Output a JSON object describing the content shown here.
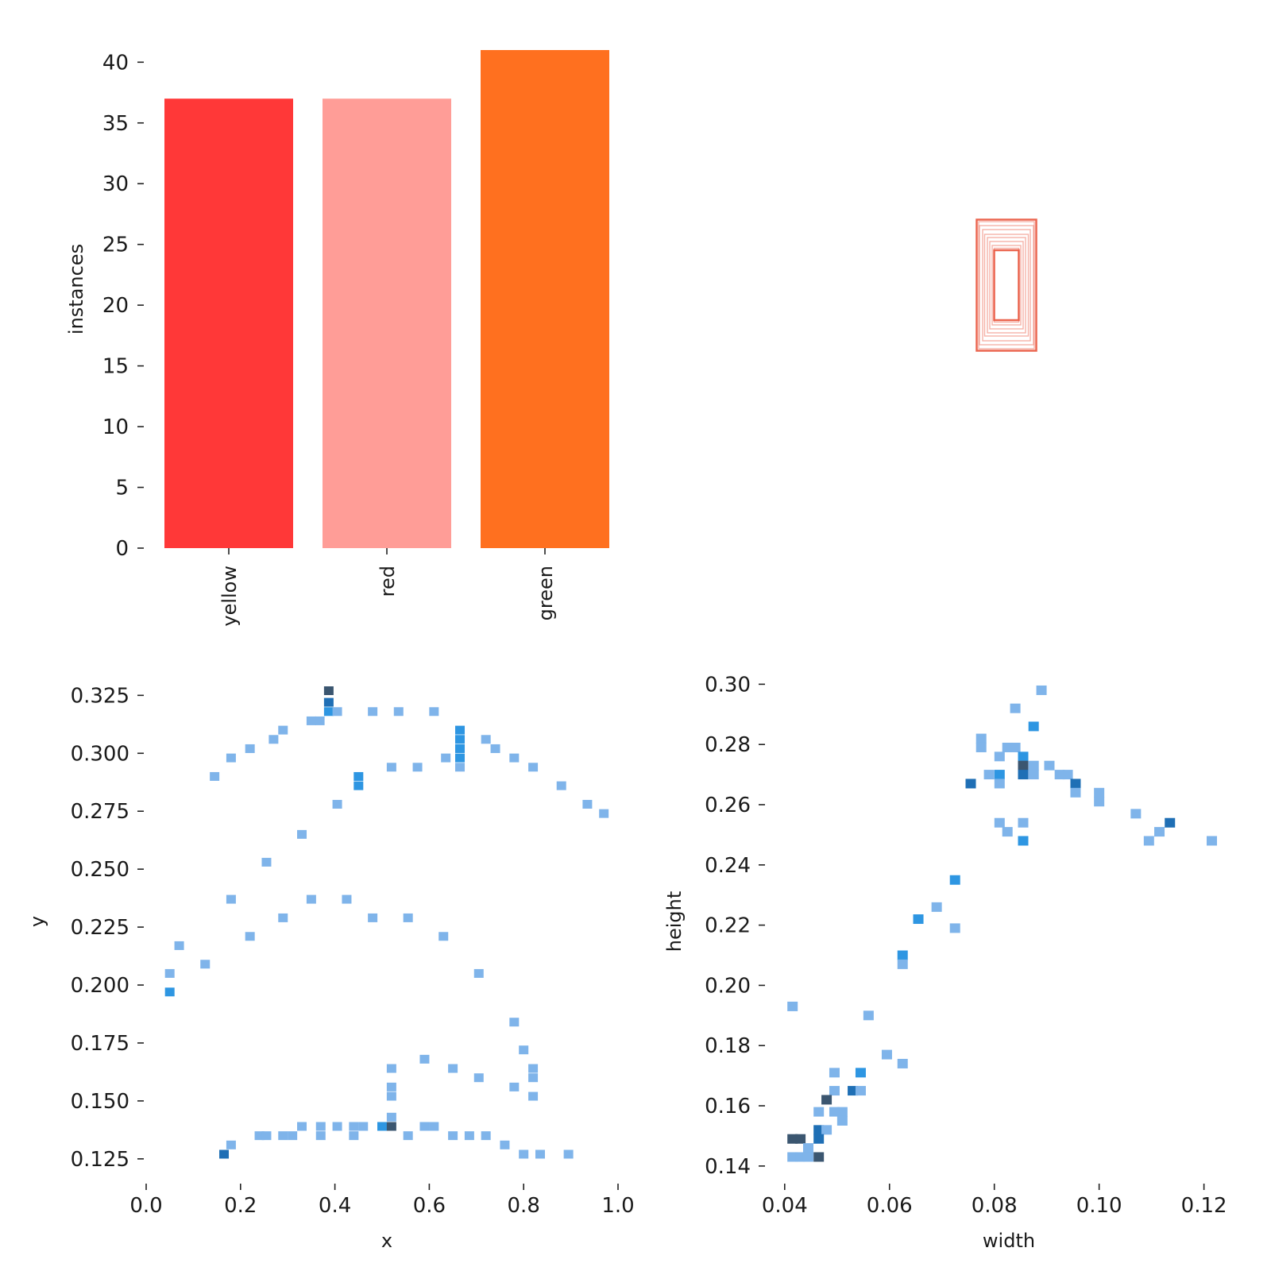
{
  "chart_data": [
    {
      "type": "bar",
      "categories": [
        "yellow",
        "red",
        "green"
      ],
      "values": [
        37,
        37,
        41
      ],
      "colors": [
        "#ff3838",
        "#ff9d97",
        "#ff701f"
      ],
      "ylabel": "instances",
      "ylim": [
        0,
        41
      ],
      "yticks": [
        "0",
        "5",
        "10",
        "15",
        "20",
        "25",
        "30",
        "35",
        "40"
      ],
      "grid": false
    },
    {
      "type": "scatter",
      "description_kind": "overlaid bounding boxes (no axes)",
      "color": "#e9553d",
      "boxes": [
        {
          "w": 0.075,
          "h": 0.165
        },
        {
          "w": 0.07,
          "h": 0.16
        },
        {
          "w": 0.068,
          "h": 0.15
        },
        {
          "w": 0.06,
          "h": 0.14
        },
        {
          "w": 0.055,
          "h": 0.128
        },
        {
          "w": 0.048,
          "h": 0.12
        },
        {
          "w": 0.042,
          "h": 0.11
        },
        {
          "w": 0.036,
          "h": 0.1
        },
        {
          "w": 0.031,
          "h": 0.093
        },
        {
          "w": 0.031,
          "h": 0.088
        }
      ]
    },
    {
      "type": "heatmap",
      "xlabel": "x",
      "ylabel": "y",
      "xlim": [
        0.0,
        1.0
      ],
      "ylim": [
        0.115,
        0.333
      ],
      "xticks": [
        "0.0",
        "0.2",
        "0.4",
        "0.6",
        "0.8",
        "1.0"
      ],
      "yticks": [
        "0.125",
        "0.150",
        "0.175",
        "0.200",
        "0.225",
        "0.250",
        "0.275",
        "0.300",
        "0.325"
      ],
      "colors": [
        "#7fb4ea",
        "#2e96e2",
        "#1f6fb5",
        "#3b5670"
      ],
      "cells": [
        {
          "x": 0.387,
          "y": 0.327,
          "c": 3
        },
        {
          "x": 0.387,
          "y": 0.322,
          "c": 2
        },
        {
          "x": 0.387,
          "y": 0.318,
          "c": 1
        },
        {
          "x": 0.405,
          "y": 0.318,
          "c": 0
        },
        {
          "x": 0.35,
          "y": 0.314,
          "c": 0
        },
        {
          "x": 0.368,
          "y": 0.314,
          "c": 0
        },
        {
          "x": 0.48,
          "y": 0.318,
          "c": 0
        },
        {
          "x": 0.535,
          "y": 0.318,
          "c": 0
        },
        {
          "x": 0.61,
          "y": 0.318,
          "c": 0
        },
        {
          "x": 0.29,
          "y": 0.31,
          "c": 0
        },
        {
          "x": 0.27,
          "y": 0.306,
          "c": 0
        },
        {
          "x": 0.22,
          "y": 0.302,
          "c": 0
        },
        {
          "x": 0.18,
          "y": 0.298,
          "c": 0
        },
        {
          "x": 0.145,
          "y": 0.29,
          "c": 0
        },
        {
          "x": 0.665,
          "y": 0.31,
          "c": 1
        },
        {
          "x": 0.665,
          "y": 0.306,
          "c": 1
        },
        {
          "x": 0.665,
          "y": 0.302,
          "c": 1
        },
        {
          "x": 0.665,
          "y": 0.298,
          "c": 1
        },
        {
          "x": 0.665,
          "y": 0.294,
          "c": 0
        },
        {
          "x": 0.72,
          "y": 0.306,
          "c": 0
        },
        {
          "x": 0.74,
          "y": 0.302,
          "c": 0
        },
        {
          "x": 0.78,
          "y": 0.298,
          "c": 0
        },
        {
          "x": 0.82,
          "y": 0.294,
          "c": 0
        },
        {
          "x": 0.88,
          "y": 0.286,
          "c": 0
        },
        {
          "x": 0.935,
          "y": 0.278,
          "c": 0
        },
        {
          "x": 0.97,
          "y": 0.274,
          "c": 0
        },
        {
          "x": 0.45,
          "y": 0.29,
          "c": 1
        },
        {
          "x": 0.45,
          "y": 0.286,
          "c": 1
        },
        {
          "x": 0.52,
          "y": 0.294,
          "c": 0
        },
        {
          "x": 0.575,
          "y": 0.294,
          "c": 0
        },
        {
          "x": 0.635,
          "y": 0.298,
          "c": 0
        },
        {
          "x": 0.405,
          "y": 0.278,
          "c": 0
        },
        {
          "x": 0.33,
          "y": 0.265,
          "c": 0
        },
        {
          "x": 0.255,
          "y": 0.253,
          "c": 0
        },
        {
          "x": 0.18,
          "y": 0.237,
          "c": 0
        },
        {
          "x": 0.35,
          "y": 0.237,
          "c": 0
        },
        {
          "x": 0.425,
          "y": 0.237,
          "c": 0
        },
        {
          "x": 0.29,
          "y": 0.229,
          "c": 0
        },
        {
          "x": 0.48,
          "y": 0.229,
          "c": 0
        },
        {
          "x": 0.555,
          "y": 0.229,
          "c": 0
        },
        {
          "x": 0.22,
          "y": 0.221,
          "c": 0
        },
        {
          "x": 0.63,
          "y": 0.221,
          "c": 0
        },
        {
          "x": 0.07,
          "y": 0.217,
          "c": 0
        },
        {
          "x": 0.125,
          "y": 0.209,
          "c": 0
        },
        {
          "x": 0.05,
          "y": 0.205,
          "c": 0
        },
        {
          "x": 0.05,
          "y": 0.197,
          "c": 1
        },
        {
          "x": 0.705,
          "y": 0.205,
          "c": 0
        },
        {
          "x": 0.78,
          "y": 0.184,
          "c": 0
        },
        {
          "x": 0.8,
          "y": 0.172,
          "c": 0
        },
        {
          "x": 0.59,
          "y": 0.168,
          "c": 0
        },
        {
          "x": 0.52,
          "y": 0.164,
          "c": 0
        },
        {
          "x": 0.65,
          "y": 0.164,
          "c": 0
        },
        {
          "x": 0.82,
          "y": 0.164,
          "c": 0
        },
        {
          "x": 0.82,
          "y": 0.16,
          "c": 0
        },
        {
          "x": 0.705,
          "y": 0.16,
          "c": 0
        },
        {
          "x": 0.52,
          "y": 0.156,
          "c": 0
        },
        {
          "x": 0.52,
          "y": 0.152,
          "c": 0
        },
        {
          "x": 0.78,
          "y": 0.156,
          "c": 0
        },
        {
          "x": 0.82,
          "y": 0.152,
          "c": 0
        },
        {
          "x": 0.52,
          "y": 0.143,
          "c": 0
        },
        {
          "x": 0.33,
          "y": 0.139,
          "c": 0
        },
        {
          "x": 0.37,
          "y": 0.139,
          "c": 0
        },
        {
          "x": 0.405,
          "y": 0.139,
          "c": 0
        },
        {
          "x": 0.44,
          "y": 0.139,
          "c": 0
        },
        {
          "x": 0.46,
          "y": 0.139,
          "c": 0
        },
        {
          "x": 0.5,
          "y": 0.139,
          "c": 1
        },
        {
          "x": 0.52,
          "y": 0.139,
          "c": 3
        },
        {
          "x": 0.59,
          "y": 0.139,
          "c": 0
        },
        {
          "x": 0.61,
          "y": 0.139,
          "c": 0
        },
        {
          "x": 0.24,
          "y": 0.135,
          "c": 0
        },
        {
          "x": 0.255,
          "y": 0.135,
          "c": 0
        },
        {
          "x": 0.29,
          "y": 0.135,
          "c": 0
        },
        {
          "x": 0.31,
          "y": 0.135,
          "c": 0
        },
        {
          "x": 0.37,
          "y": 0.135,
          "c": 0
        },
        {
          "x": 0.44,
          "y": 0.135,
          "c": 0
        },
        {
          "x": 0.555,
          "y": 0.135,
          "c": 0
        },
        {
          "x": 0.65,
          "y": 0.135,
          "c": 0
        },
        {
          "x": 0.685,
          "y": 0.135,
          "c": 0
        },
        {
          "x": 0.72,
          "y": 0.135,
          "c": 0
        },
        {
          "x": 0.18,
          "y": 0.131,
          "c": 0
        },
        {
          "x": 0.76,
          "y": 0.131,
          "c": 0
        },
        {
          "x": 0.165,
          "y": 0.127,
          "c": 2
        },
        {
          "x": 0.8,
          "y": 0.127,
          "c": 0
        },
        {
          "x": 0.835,
          "y": 0.127,
          "c": 0
        },
        {
          "x": 0.895,
          "y": 0.127,
          "c": 0
        }
      ]
    },
    {
      "type": "heatmap",
      "xlabel": "width",
      "ylabel": "height",
      "xlim": [
        0.037,
        0.124
      ],
      "ylim": [
        0.136,
        0.303
      ],
      "xticks": [
        "0.04",
        "0.06",
        "0.08",
        "0.10",
        "0.12"
      ],
      "yticks": [
        "0.14",
        "0.16",
        "0.18",
        "0.20",
        "0.22",
        "0.24",
        "0.26",
        "0.28",
        "0.30"
      ],
      "colors": [
        "#7fb4ea",
        "#2e96e2",
        "#1f6fb5",
        "#3b5670"
      ],
      "cells": [
        {
          "x": 0.089,
          "y": 0.298,
          "c": 0
        },
        {
          "x": 0.084,
          "y": 0.292,
          "c": 0
        },
        {
          "x": 0.0875,
          "y": 0.286,
          "c": 1
        },
        {
          "x": 0.0775,
          "y": 0.282,
          "c": 0
        },
        {
          "x": 0.0775,
          "y": 0.279,
          "c": 0
        },
        {
          "x": 0.0825,
          "y": 0.279,
          "c": 0
        },
        {
          "x": 0.084,
          "y": 0.279,
          "c": 0
        },
        {
          "x": 0.081,
          "y": 0.276,
          "c": 0
        },
        {
          "x": 0.0855,
          "y": 0.276,
          "c": 1
        },
        {
          "x": 0.0855,
          "y": 0.273,
          "c": 3
        },
        {
          "x": 0.0875,
          "y": 0.273,
          "c": 0
        },
        {
          "x": 0.0905,
          "y": 0.273,
          "c": 0
        },
        {
          "x": 0.079,
          "y": 0.27,
          "c": 0
        },
        {
          "x": 0.081,
          "y": 0.27,
          "c": 1
        },
        {
          "x": 0.0855,
          "y": 0.27,
          "c": 2
        },
        {
          "x": 0.0875,
          "y": 0.27,
          "c": 0
        },
        {
          "x": 0.0925,
          "y": 0.27,
          "c": 0
        },
        {
          "x": 0.094,
          "y": 0.27,
          "c": 0
        },
        {
          "x": 0.0755,
          "y": 0.267,
          "c": 2
        },
        {
          "x": 0.081,
          "y": 0.267,
          "c": 0
        },
        {
          "x": 0.0955,
          "y": 0.267,
          "c": 2
        },
        {
          "x": 0.0955,
          "y": 0.264,
          "c": 0
        },
        {
          "x": 0.1,
          "y": 0.264,
          "c": 0
        },
        {
          "x": 0.1,
          "y": 0.261,
          "c": 0
        },
        {
          "x": 0.107,
          "y": 0.257,
          "c": 0
        },
        {
          "x": 0.081,
          "y": 0.254,
          "c": 0
        },
        {
          "x": 0.0855,
          "y": 0.254,
          "c": 0
        },
        {
          "x": 0.1135,
          "y": 0.254,
          "c": 2
        },
        {
          "x": 0.0825,
          "y": 0.251,
          "c": 0
        },
        {
          "x": 0.1115,
          "y": 0.251,
          "c": 0
        },
        {
          "x": 0.0855,
          "y": 0.248,
          "c": 1
        },
        {
          "x": 0.1095,
          "y": 0.248,
          "c": 0
        },
        {
          "x": 0.1215,
          "y": 0.248,
          "c": 0
        },
        {
          "x": 0.0725,
          "y": 0.235,
          "c": 1
        },
        {
          "x": 0.069,
          "y": 0.226,
          "c": 0
        },
        {
          "x": 0.0655,
          "y": 0.222,
          "c": 1
        },
        {
          "x": 0.0725,
          "y": 0.219,
          "c": 0
        },
        {
          "x": 0.0625,
          "y": 0.21,
          "c": 1
        },
        {
          "x": 0.0625,
          "y": 0.207,
          "c": 0
        },
        {
          "x": 0.0415,
          "y": 0.193,
          "c": 0
        },
        {
          "x": 0.056,
          "y": 0.19,
          "c": 0
        },
        {
          "x": 0.0595,
          "y": 0.177,
          "c": 0
        },
        {
          "x": 0.0625,
          "y": 0.174,
          "c": 0
        },
        {
          "x": 0.0495,
          "y": 0.171,
          "c": 0
        },
        {
          "x": 0.0545,
          "y": 0.171,
          "c": 1
        },
        {
          "x": 0.0495,
          "y": 0.165,
          "c": 0
        },
        {
          "x": 0.053,
          "y": 0.165,
          "c": 2
        },
        {
          "x": 0.0545,
          "y": 0.165,
          "c": 0
        },
        {
          "x": 0.048,
          "y": 0.162,
          "c": 3
        },
        {
          "x": 0.0465,
          "y": 0.158,
          "c": 0
        },
        {
          "x": 0.0495,
          "y": 0.158,
          "c": 0
        },
        {
          "x": 0.051,
          "y": 0.158,
          "c": 0
        },
        {
          "x": 0.051,
          "y": 0.155,
          "c": 0
        },
        {
          "x": 0.0465,
          "y": 0.152,
          "c": 2
        },
        {
          "x": 0.048,
          "y": 0.152,
          "c": 0
        },
        {
          "x": 0.0415,
          "y": 0.149,
          "c": 3
        },
        {
          "x": 0.043,
          "y": 0.149,
          "c": 3
        },
        {
          "x": 0.0465,
          "y": 0.149,
          "c": 2
        },
        {
          "x": 0.0445,
          "y": 0.146,
          "c": 0
        },
        {
          "x": 0.0415,
          "y": 0.143,
          "c": 0
        },
        {
          "x": 0.043,
          "y": 0.143,
          "c": 0
        },
        {
          "x": 0.0445,
          "y": 0.143,
          "c": 0
        },
        {
          "x": 0.0465,
          "y": 0.143,
          "c": 3
        }
      ]
    }
  ]
}
